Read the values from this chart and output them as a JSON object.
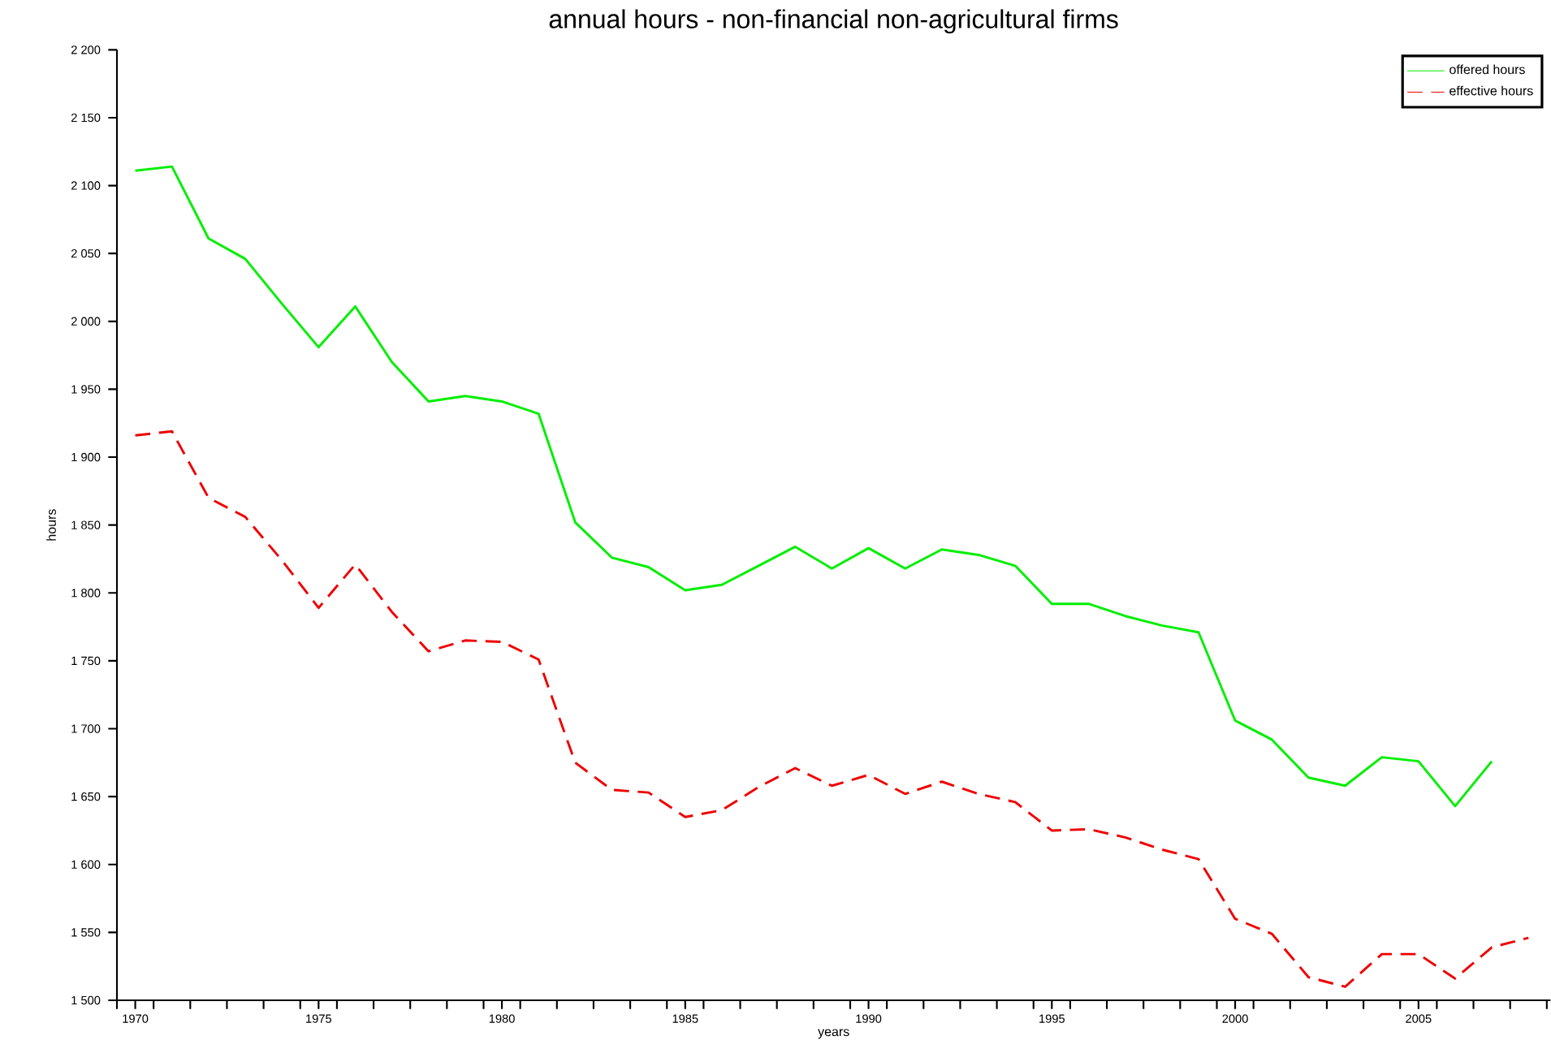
{
  "chart_data": {
    "type": "line",
    "title": "annual hours - non-financial non-agricultural firms",
    "xlabel": "years",
    "ylabel": "hours",
    "x": [
      1970,
      1971,
      1972,
      1973,
      1974,
      1975,
      1976,
      1977,
      1978,
      1979,
      1980,
      1981,
      1982,
      1983,
      1984,
      1985,
      1986,
      1987,
      1988,
      1989,
      1990,
      1991,
      1992,
      1993,
      1994,
      1995,
      1996,
      1997,
      1998,
      1999,
      2000,
      2001,
      2002,
      2003,
      2004,
      2005,
      2006,
      2007,
      2008
    ],
    "series": [
      {
        "name": "offered hours",
        "color": "#00ee00",
        "line_style": "solid",
        "values": [
          2111,
          2114,
          2061,
          2046,
          2013,
          1981,
          2011,
          1970,
          1941,
          1945,
          1941,
          1932,
          1852,
          1826,
          1819,
          1802,
          1806,
          1820,
          1834,
          1818,
          1833,
          1818,
          1832,
          1828,
          1820,
          1792,
          1792,
          1783,
          1776,
          1771,
          1706,
          1692,
          1664,
          1658,
          1679,
          1676,
          1643,
          1676,
          null
        ]
      },
      {
        "name": "effective hours",
        "color": "#ee0000",
        "line_style": "dashed",
        "values": [
          1916,
          1919,
          1870,
          1856,
          1824,
          1789,
          1821,
          1786,
          1757,
          1765,
          1764,
          1751,
          1675,
          1655,
          1653,
          1635,
          1640,
          1657,
          1671,
          1658,
          1666,
          1652,
          1661,
          1652,
          1646,
          1625,
          1626,
          1620,
          1611,
          1604,
          1560,
          1549,
          1517,
          1510,
          1534,
          1534,
          1516,
          1539,
          1546
        ]
      }
    ],
    "xlim": [
      1969.5,
      2008.6
    ],
    "xticks": [
      {
        "value": 1970,
        "label": "1970"
      },
      {
        "value": 1975,
        "label": "1975"
      },
      {
        "value": 1980,
        "label": "1980"
      },
      {
        "value": 1985,
        "label": "1985"
      },
      {
        "value": 1990,
        "label": "1990"
      },
      {
        "value": 1995,
        "label": "1995"
      },
      {
        "value": 2000,
        "label": "2000"
      },
      {
        "value": 2005,
        "label": "2005"
      }
    ],
    "ylim": [
      1500,
      2200
    ],
    "yticks": [
      {
        "value": 1500,
        "label": "1 500"
      },
      {
        "value": 1550,
        "label": "1 550"
      },
      {
        "value": 1600,
        "label": "1 600"
      },
      {
        "value": 1650,
        "label": "1 650"
      },
      {
        "value": 1700,
        "label": "1 700"
      },
      {
        "value": 1750,
        "label": "1 750"
      },
      {
        "value": 1800,
        "label": "1 800"
      },
      {
        "value": 1850,
        "label": "1 850"
      },
      {
        "value": 1900,
        "label": "1 900"
      },
      {
        "value": 1950,
        "label": "1 950"
      },
      {
        "value": 2000,
        "label": "2 000"
      },
      {
        "value": 2050,
        "label": "2 050"
      },
      {
        "value": 2100,
        "label": "2 100"
      },
      {
        "value": 2150,
        "label": "2 150"
      },
      {
        "value": 2200,
        "label": "2 200"
      }
    ],
    "legend": "top right",
    "grid": false,
    "marker": "none"
  }
}
